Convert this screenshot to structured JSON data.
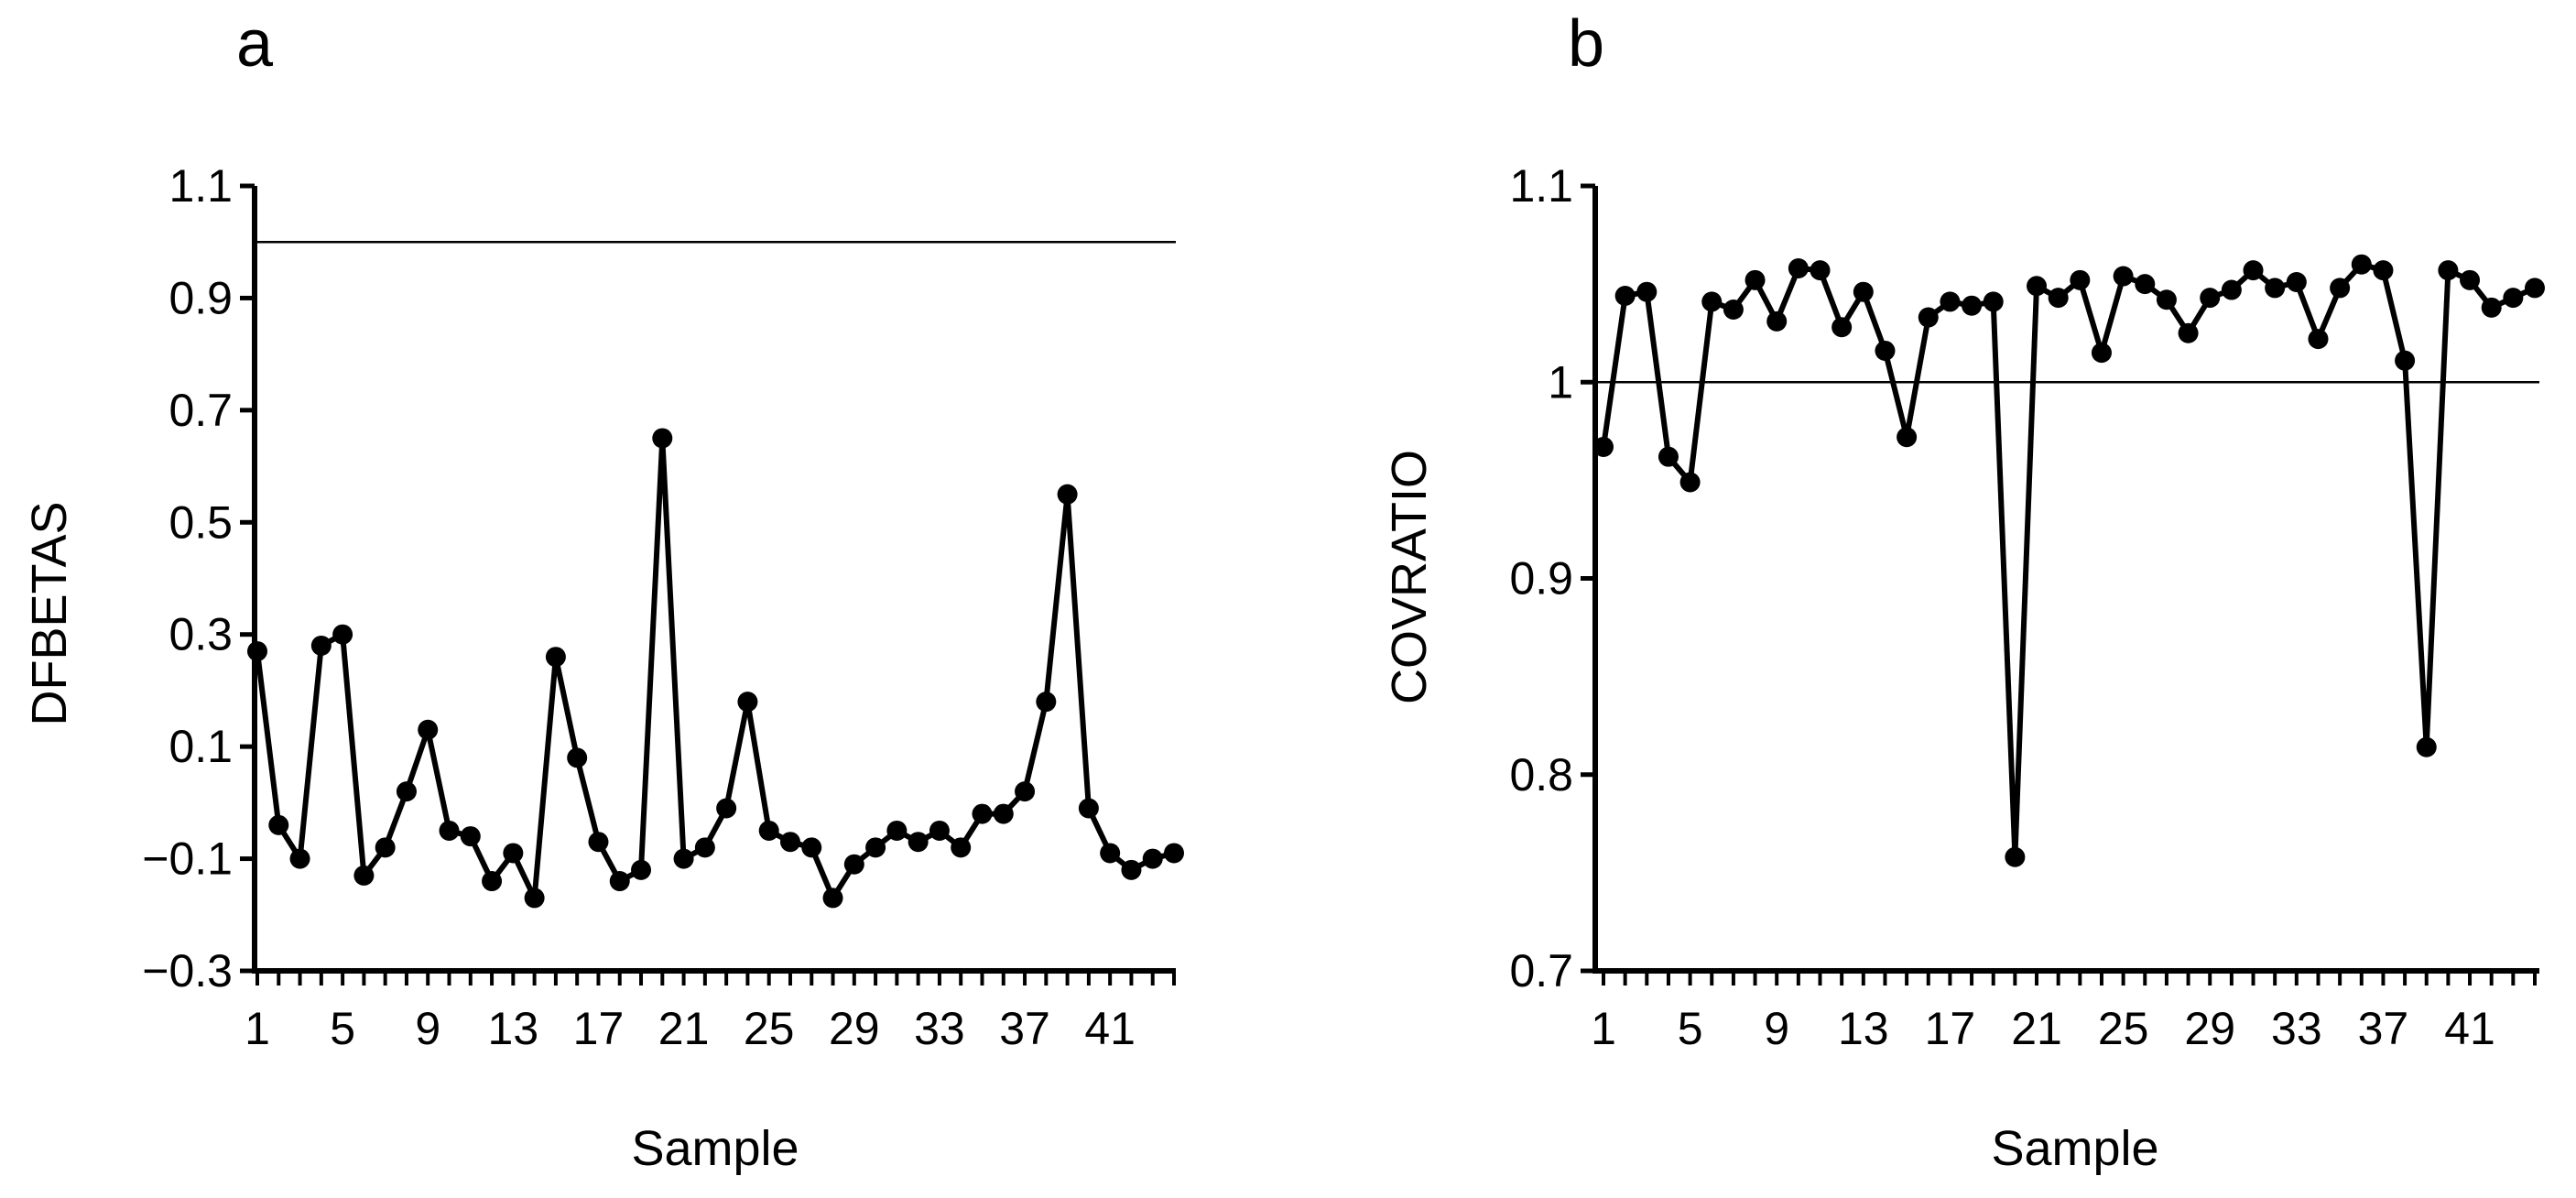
{
  "chart_data": [
    {
      "type": "line",
      "panel_label": "a",
      "xlabel": "Sample",
      "ylabel": "DFBETAS",
      "ylim": [
        -0.3,
        1.1
      ],
      "yticks": [
        -0.3,
        -0.1,
        0.1,
        0.3,
        0.5,
        0.7,
        0.9,
        1.1
      ],
      "ytick_labels": [
        "−0.3",
        "−0.1",
        "0.1",
        "0.3",
        "0.5",
        "0.7",
        "0.9",
        "1.1"
      ],
      "xtick_labels": [
        "1",
        "5",
        "9",
        "13",
        "17",
        "21",
        "25",
        "29",
        "33",
        "37",
        "41"
      ],
      "x_count": 44,
      "reference_line": 1.0,
      "series": [
        {
          "name": "DFBETAS",
          "values": [
            0.27,
            -0.04,
            -0.1,
            0.28,
            0.3,
            -0.13,
            -0.08,
            0.02,
            0.13,
            -0.05,
            -0.06,
            -0.14,
            -0.09,
            -0.17,
            0.26,
            0.08,
            -0.07,
            -0.14,
            -0.12,
            0.65,
            -0.1,
            -0.08,
            -0.01,
            0.18,
            -0.05,
            -0.07,
            -0.08,
            -0.17,
            -0.11,
            -0.08,
            -0.05,
            -0.07,
            -0.05,
            -0.08,
            -0.02,
            -0.02,
            0.02,
            0.18,
            0.55,
            -0.01,
            -0.09,
            -0.12,
            -0.1,
            -0.09
          ]
        }
      ]
    },
    {
      "type": "line",
      "panel_label": "b",
      "xlabel": "Sample",
      "ylabel": "COVRATIO",
      "ylim": [
        0.7,
        1.1
      ],
      "yticks": [
        0.7,
        0.8,
        0.9,
        1.0,
        1.1
      ],
      "ytick_labels": [
        "0.7",
        "0.8",
        "0.9",
        "1",
        "1.1"
      ],
      "xtick_labels": [
        "1",
        "5",
        "9",
        "13",
        "17",
        "21",
        "25",
        "29",
        "33",
        "37",
        "41"
      ],
      "x_count": 44,
      "reference_line": 1.0,
      "series": [
        {
          "name": "COVRATIO",
          "values": [
            0.967,
            1.044,
            1.046,
            0.962,
            0.949,
            1.041,
            1.037,
            1.052,
            1.031,
            1.058,
            1.057,
            1.028,
            1.046,
            1.016,
            0.972,
            1.033,
            1.041,
            1.039,
            1.041,
            0.758,
            1.049,
            1.043,
            1.052,
            1.015,
            1.054,
            1.05,
            1.042,
            1.025,
            1.043,
            1.047,
            1.057,
            1.048,
            1.051,
            1.022,
            1.048,
            1.06,
            1.057,
            1.011,
            0.814,
            1.057,
            1.052,
            1.038,
            1.043,
            1.048
          ]
        }
      ]
    }
  ]
}
